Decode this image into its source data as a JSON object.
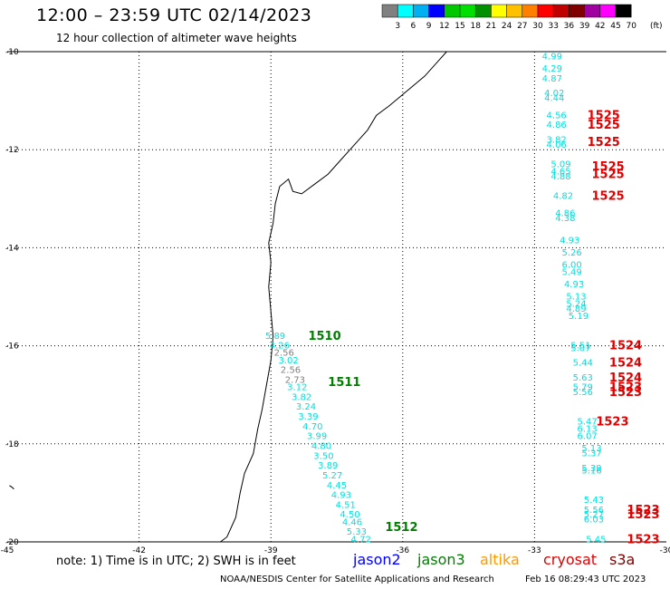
{
  "header": {
    "title": "12:00 – 23:59 UTC 02/14/2023",
    "subtitle": "12 hour collection of altimeter wave heights"
  },
  "scale": {
    "labels": [
      "3",
      "6",
      "9",
      "12",
      "15",
      "18",
      "21",
      "24",
      "27",
      "30",
      "33",
      "36",
      "39",
      "42",
      "45",
      "70"
    ],
    "unit": "(ft)",
    "colors": [
      "#808080",
      "#00ffff",
      "#00b0f0",
      "#0000ff",
      "#00c800",
      "#00e000",
      "#009000",
      "#ffff00",
      "#ffc000",
      "#ff8000",
      "#ff0000",
      "#c00000",
      "#800000",
      "#a000a0",
      "#ff00ff",
      "#000000"
    ]
  },
  "axes": {
    "lon_labels": [
      "-45",
      "-42",
      "-39",
      "-36",
      "-33",
      "-30"
    ],
    "lat_labels": [
      "-10",
      "-12",
      "-14",
      "-16",
      "-18",
      "-20"
    ]
  },
  "chart_data": {
    "type": "map",
    "lon_range": [
      -45,
      -30
    ],
    "lat_range": [
      -20,
      -10
    ],
    "grid": true,
    "passes": [
      {
        "id": "1510-1512",
        "labels": [
          {
            "text": "1510",
            "color": "#008000",
            "lon": -38.15,
            "lat": -15.8
          },
          {
            "text": "1511",
            "color": "#008000",
            "lon": -37.7,
            "lat": -16.75
          },
          {
            "text": "1512",
            "color": "#008000",
            "lon": -36.4,
            "lat": -19.7
          }
        ],
        "points": [
          {
            "v": "5.89",
            "lon": -38.9,
            "lat": -15.8,
            "c": "#00e0e0"
          },
          {
            "v": "4.26",
            "lon": -38.8,
            "lat": -16.0,
            "c": "#00e0e0"
          },
          {
            "v": "2.56",
            "lon": -38.7,
            "lat": -16.15,
            "c": "#808080"
          },
          {
            "v": "3.02",
            "lon": -38.6,
            "lat": -16.3,
            "c": "#00e0e0"
          },
          {
            "v": "2.56",
            "lon": -38.55,
            "lat": -16.5,
            "c": "#808080"
          },
          {
            "v": "2.73",
            "lon": -38.45,
            "lat": -16.7,
            "c": "#808080"
          },
          {
            "v": "3.12",
            "lon": -38.4,
            "lat": -16.85,
            "c": "#00e0e0"
          },
          {
            "v": "3.82",
            "lon": -38.3,
            "lat": -17.05,
            "c": "#00e0e0"
          },
          {
            "v": "3.24",
            "lon": -38.2,
            "lat": -17.25,
            "c": "#00e0e0"
          },
          {
            "v": "3.39",
            "lon": -38.15,
            "lat": -17.45,
            "c": "#00e0e0"
          },
          {
            "v": "4.70",
            "lon": -38.05,
            "lat": -17.65,
            "c": "#00e0e0"
          },
          {
            "v": "3.99",
            "lon": -37.95,
            "lat": -17.85,
            "c": "#00e0e0"
          },
          {
            "v": "4.80",
            "lon": -37.85,
            "lat": -18.05,
            "c": "#00e0e0"
          },
          {
            "v": "3.50",
            "lon": -37.8,
            "lat": -18.25,
            "c": "#00e0e0"
          },
          {
            "v": "3.89",
            "lon": -37.7,
            "lat": -18.45,
            "c": "#00e0e0"
          },
          {
            "v": "5.27",
            "lon": -37.6,
            "lat": -18.65,
            "c": "#00e0e0"
          },
          {
            "v": "4.45",
            "lon": -37.5,
            "lat": -18.85,
            "c": "#00e0e0"
          },
          {
            "v": "4.93",
            "lon": -37.4,
            "lat": -19.05,
            "c": "#00e0e0"
          },
          {
            "v": "4.51",
            "lon": -37.3,
            "lat": -19.25,
            "c": "#00e0e0"
          },
          {
            "v": "4.50",
            "lon": -37.2,
            "lat": -19.45,
            "c": "#00e0e0"
          },
          {
            "v": "4.46",
            "lon": -37.15,
            "lat": -19.6,
            "c": "#00e0e0"
          },
          {
            "v": "5.33",
            "lon": -37.05,
            "lat": -19.8,
            "c": "#00e0e0"
          },
          {
            "v": "4.72",
            "lon": -36.95,
            "lat": -19.95,
            "c": "#00e0e0"
          }
        ]
      },
      {
        "id": "1523-1525",
        "labels": [
          {
            "text": "1525",
            "color": "#e00000",
            "lon": -31.8,
            "lat": -11.3
          },
          {
            "text": "1525",
            "color": "#e00000",
            "lon": -31.8,
            "lat": -11.5
          },
          {
            "text": "1525",
            "color": "#e00000",
            "lon": -31.8,
            "lat": -11.85
          },
          {
            "text": "1525",
            "color": "#e00000",
            "lon": -31.7,
            "lat": -12.35
          },
          {
            "text": "1525",
            "color": "#e00000",
            "lon": -31.7,
            "lat": -12.5
          },
          {
            "text": "1525",
            "color": "#e00000",
            "lon": -31.7,
            "lat": -12.95
          },
          {
            "text": "1524",
            "color": "#e00000",
            "lon": -31.3,
            "lat": -16.0
          },
          {
            "text": "1524",
            "color": "#e00000",
            "lon": -31.3,
            "lat": -16.35
          },
          {
            "text": "1524",
            "color": "#e00000",
            "lon": -31.3,
            "lat": -16.65
          },
          {
            "text": "1523",
            "color": "#e00000",
            "lon": -31.3,
            "lat": -16.85
          },
          {
            "text": "1523",
            "color": "#e00000",
            "lon": -31.3,
            "lat": -16.95
          },
          {
            "text": "1523",
            "color": "#e00000",
            "lon": -31.6,
            "lat": -17.55
          },
          {
            "text": "1523",
            "color": "#e00000",
            "lon": -30.9,
            "lat": -19.35
          },
          {
            "text": "1523",
            "color": "#e00000",
            "lon": -30.9,
            "lat": -19.45
          },
          {
            "text": "1523",
            "color": "#e00000",
            "lon": -30.9,
            "lat": -19.95
          }
        ],
        "points": [
          {
            "v": "4.99",
            "lon": -32.6,
            "lat": -10.1,
            "c": "#00e0e0"
          },
          {
            "v": "4.29",
            "lon": -32.6,
            "lat": -10.35,
            "c": "#00e0e0"
          },
          {
            "v": "4.87",
            "lon": -32.6,
            "lat": -10.55,
            "c": "#00e0e0"
          },
          {
            "v": "4.02",
            "lon": -32.55,
            "lat": -10.85,
            "c": "#00e0e0"
          },
          {
            "v": "4.44",
            "lon": -32.55,
            "lat": -10.95,
            "c": "#00e0e0"
          },
          {
            "v": "4.56",
            "lon": -32.5,
            "lat": -11.3,
            "c": "#00e0e0"
          },
          {
            "v": "4.86",
            "lon": -32.5,
            "lat": -11.5,
            "c": "#00e0e0"
          },
          {
            "v": "3.82",
            "lon": -32.5,
            "lat": -11.8,
            "c": "#00e0e0"
          },
          {
            "v": "4.06",
            "lon": -32.5,
            "lat": -11.9,
            "c": "#00e0e0"
          },
          {
            "v": "5.09",
            "lon": -32.4,
            "lat": -12.3,
            "c": "#00e0e0"
          },
          {
            "v": "4.65",
            "lon": -32.4,
            "lat": -12.45,
            "c": "#00e0e0"
          },
          {
            "v": "4.88",
            "lon": -32.4,
            "lat": -12.55,
            "c": "#00e0e0"
          },
          {
            "v": "4.82",
            "lon": -32.35,
            "lat": -12.95,
            "c": "#00e0e0"
          },
          {
            "v": "4.86",
            "lon": -32.3,
            "lat": -13.3,
            "c": "#00e0e0"
          },
          {
            "v": "4.38",
            "lon": -32.3,
            "lat": -13.4,
            "c": "#00e0e0"
          },
          {
            "v": "4.93",
            "lon": -32.2,
            "lat": -13.85,
            "c": "#00e0e0"
          },
          {
            "v": "5.26",
            "lon": -32.15,
            "lat": -14.1,
            "c": "#00e0e0"
          },
          {
            "v": "6.00",
            "lon": -32.15,
            "lat": -14.35,
            "c": "#00e0e0"
          },
          {
            "v": "5.49",
            "lon": -32.15,
            "lat": -14.5,
            "c": "#00e0e0"
          },
          {
            "v": "4.93",
            "lon": -32.1,
            "lat": -14.75,
            "c": "#00e0e0"
          },
          {
            "v": "5.13",
            "lon": -32.05,
            "lat": -15.0,
            "c": "#00e0e0"
          },
          {
            "v": "5.24",
            "lon": -32.05,
            "lat": -15.15,
            "c": "#00e0e0"
          },
          {
            "v": "4.89",
            "lon": -32.05,
            "lat": -15.25,
            "c": "#00e0e0"
          },
          {
            "v": "5.19",
            "lon": -32.0,
            "lat": -15.4,
            "c": "#00e0e0"
          },
          {
            "v": "5.51",
            "lon": -31.95,
            "lat": -16.0,
            "c": "#00e0e0"
          },
          {
            "v": "5.07",
            "lon": -31.95,
            "lat": -16.05,
            "c": "#00e0e0"
          },
          {
            "v": "5.44",
            "lon": -31.9,
            "lat": -16.35,
            "c": "#00e0e0"
          },
          {
            "v": "5.63",
            "lon": -31.9,
            "lat": -16.65,
            "c": "#00e0e0"
          },
          {
            "v": "5.79",
            "lon": -31.9,
            "lat": -16.85,
            "c": "#00e0e0"
          },
          {
            "v": "5.56",
            "lon": -31.9,
            "lat": -16.95,
            "c": "#00e0e0"
          },
          {
            "v": "5.47",
            "lon": -31.8,
            "lat": -17.55,
            "c": "#00e0e0"
          },
          {
            "v": "6.13",
            "lon": -31.8,
            "lat": -17.7,
            "c": "#00e0e0"
          },
          {
            "v": "6.07",
            "lon": -31.8,
            "lat": -17.85,
            "c": "#00e0e0"
          },
          {
            "v": "5.13",
            "lon": -31.7,
            "lat": -18.1,
            "c": "#00e0e0"
          },
          {
            "v": "5.37",
            "lon": -31.7,
            "lat": -18.2,
            "c": "#00e0e0"
          },
          {
            "v": "5.39",
            "lon": -31.7,
            "lat": -18.5,
            "c": "#00e0e0"
          },
          {
            "v": "5.16",
            "lon": -31.7,
            "lat": -18.55,
            "c": "#00e0e0"
          },
          {
            "v": "5.43",
            "lon": -31.65,
            "lat": -19.15,
            "c": "#00e0e0"
          },
          {
            "v": "5.56",
            "lon": -31.65,
            "lat": -19.35,
            "c": "#00e0e0"
          },
          {
            "v": "5.27",
            "lon": -31.65,
            "lat": -19.45,
            "c": "#00e0e0"
          },
          {
            "v": "6.03",
            "lon": -31.65,
            "lat": -19.55,
            "c": "#00e0e0"
          },
          {
            "v": "5.45",
            "lon": -31.6,
            "lat": -19.95,
            "c": "#00e0e0"
          }
        ]
      }
    ]
  },
  "footer": {
    "note": "note: 1) Time is in UTC; 2) SWH is in feet",
    "satellites": [
      {
        "name": "jason2",
        "color": "#0000ff"
      },
      {
        "name": "jason3",
        "color": "#008000"
      },
      {
        "name": "altika",
        "color": "#ff9900"
      },
      {
        "name": "cryosat",
        "color": "#e00000"
      },
      {
        "name": "s3a",
        "color": "#800000"
      }
    ],
    "credit": "NOAA/NESDIS Center for Satellite Applications and Research",
    "timestamp": "Feb 16 08:29:43 UTC 2023"
  }
}
